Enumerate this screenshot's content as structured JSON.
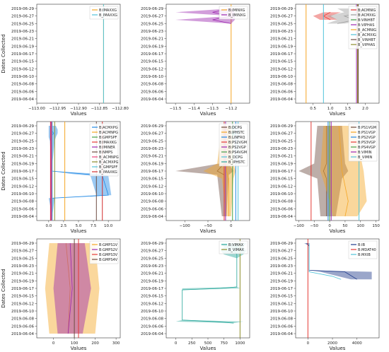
{
  "dates": [
    "2019-06-04",
    "2019-06-06",
    "2019-06-08",
    "2019-06-10",
    "2019-06-12",
    "2019-06-15",
    "2019-06-17",
    "2019-06-19",
    "2019-06-21",
    "2019-06-23",
    "2019-06-25",
    "2019-06-27",
    "2019-06-29"
  ],
  "ylabel": "Dates Collected",
  "xlabel": "Values",
  "chart_data": [
    {
      "type": "line",
      "xlim": [
        -113.0,
        -112.8
      ],
      "xticks": [
        -113.0,
        -112.95,
        -112.9,
        -112.85,
        -112.8
      ],
      "xtick_labels": [
        "−113.00",
        "−112.95",
        "−112.90",
        "−112.85",
        "−112.80"
      ],
      "xlabel": "Values",
      "ylabel": "Dates Collected",
      "legend": "top-right",
      "series": [
        {
          "name": "B:IMAXXG",
          "color": "#f5a623",
          "kind": "vline",
          "x": -112.84
        },
        {
          "name": "B_IMAXXG",
          "color": "#4fc3d9",
          "kind": "vline",
          "x": -112.84
        }
      ]
    },
    {
      "type": "line",
      "xlim": [
        -11.55,
        -11.1
      ],
      "xticks": [
        -11.5,
        -11.4,
        -11.3,
        -11.2
      ],
      "xtick_labels": [
        "−11.5",
        "−11.4",
        "−11.3",
        "−11.2"
      ],
      "xlabel": "Values",
      "ylabel": "",
      "legend": "top-right",
      "series": [
        {
          "name": "B:IMINXG",
          "color": "#f5a623",
          "kind": "vline",
          "x": -11.2
        },
        {
          "name": "B_IMINXG",
          "color": "#9c27b0",
          "kind": "band",
          "points": [
            [
              12,
              -11.2,
              -11.2,
              -11.2
            ],
            [
              11.5,
              -11.3,
              -11.5,
              -11.18
            ],
            [
              11,
              -11.2,
              -11.2,
              -11.18
            ],
            [
              10.5,
              -11.3,
              -11.5,
              -11.18
            ],
            [
              10,
              -11.2,
              -11.2,
              -11.2
            ]
          ]
        }
      ]
    },
    {
      "type": "line",
      "xlim": [
        0.0,
        2.4
      ],
      "xticks": [
        0.5,
        1.0,
        1.5,
        2.0
      ],
      "xtick_labels": [
        "0.5",
        "1.0",
        "1.5",
        "2.0"
      ],
      "xlabel": "Values",
      "ylabel": "",
      "legend": "top-right",
      "series": [
        {
          "name": "B:ACMNIG",
          "color": "#e53935",
          "kind": "band",
          "points": [
            [
              11.5,
              1.0,
              0.8,
              1.3
            ],
            [
              11,
              0.8,
              0.5,
              1.0
            ],
            [
              10.5,
              1.0,
              0.7,
              1.2
            ]
          ]
        },
        {
          "name": "B:ACMXIG",
          "color": "#9e9e9e",
          "kind": "band",
          "points": [
            [
              12,
              1.6,
              1.2,
              2.0
            ],
            [
              11.5,
              1.9,
              1.4,
              2.2
            ],
            [
              11,
              1.4,
              0.9,
              1.8
            ],
            [
              10.5,
              1.7,
              1.2,
              2.1
            ],
            [
              10,
              1.2,
              0.9,
              1.4
            ]
          ]
        },
        {
          "name": "B:VINHBT",
          "color": "#43a047",
          "kind": "vline",
          "x": 1.8
        },
        {
          "name": "B:VIPHAS",
          "color": "#9c27b0",
          "kind": "vline",
          "x": 1.75
        },
        {
          "name": "B_ACMNIG",
          "color": "#f5a623",
          "kind": "vline",
          "x": 0.3
        },
        {
          "name": "B_ACMXIG",
          "color": "#4fc3d9",
          "kind": "vline",
          "x": 0.8
        },
        {
          "name": "B_VINHBT",
          "color": "#6d4c41",
          "kind": "vline",
          "x": 1.8
        },
        {
          "name": "B_VIPHAS",
          "color": "#8d8d2a",
          "kind": "vline",
          "x": 1.78
        }
      ]
    },
    {
      "type": "line",
      "xlim": [
        -2,
        12
      ],
      "xticks": [
        0.0,
        2.5,
        5.0,
        7.5,
        10.0
      ],
      "xtick_labels": [
        "0.0",
        "2.5",
        "5.0",
        "7.5",
        "10.0"
      ],
      "xlabel": "Values",
      "ylabel": "Dates Collected",
      "legend": "top-right",
      "series": [
        {
          "name": "B:ACMXPG",
          "color": "#1e88e5",
          "kind": "band",
          "points": [
            [
              12,
              0.6,
              0.0,
              1.2
            ],
            [
              11.5,
              0.5,
              0.0,
              1.5
            ],
            [
              11,
              0.8,
              0.0,
              1.5
            ],
            [
              10.5,
              0.4,
              0.0,
              1.2
            ],
            [
              10,
              0.5,
              0.2,
              1.0
            ],
            [
              6,
              0.5,
              0.5,
              0.5
            ],
            [
              5.6,
              6.0,
              4.0,
              9.0
            ],
            [
              5.4,
              9.0,
              7.0,
              10.0
            ],
            [
              2.8,
              10.0,
              8.0,
              10.5
            ],
            [
              2.4,
              0.6,
              0.0,
              1.0
            ],
            [
              0,
              0.6,
              0.6,
              0.6
            ]
          ]
        },
        {
          "name": "B:ACMNPG",
          "color": "#f5a623",
          "kind": "vline",
          "x": 2.7
        },
        {
          "name": "B:GMPSPF",
          "color": "#43a047",
          "kind": "vline",
          "x": 0.5
        },
        {
          "name": "B:IMAXKG",
          "color": "#e53935",
          "kind": "vline",
          "x": 0.3
        },
        {
          "name": "B:IMINER",
          "color": "#9c27b0",
          "kind": "vline",
          "x": 0.4
        },
        {
          "name": "B:NMPS",
          "color": "#6d4c41",
          "kind": "vline",
          "x": 8.0
        },
        {
          "name": "B_ACMNPG",
          "color": "#ec407a",
          "kind": "vline",
          "x": 0.5
        },
        {
          "name": "B_ACMXPG",
          "color": "#8d8d2a",
          "kind": "vline",
          "x": 1.0
        },
        {
          "name": "B_GMPSPF",
          "color": "#4fc3d9",
          "kind": "vline",
          "x": 0.6
        },
        {
          "name": "B_IMAXKG",
          "color": "#d32f2f",
          "kind": "vline",
          "x": 9.0
        }
      ]
    },
    {
      "type": "line",
      "xlim": [
        -140,
        40
      ],
      "xticks": [
        -100,
        -50,
        0
      ],
      "xtick_labels": [
        "−100",
        "−50",
        "0"
      ],
      "xlabel": "Values",
      "ylabel": "",
      "legend": "top-right",
      "series": [
        {
          "name": "B:DCPG",
          "color": "#6d4c41",
          "kind": "band",
          "points": [
            [
              12,
              -15,
              -20,
              -5
            ],
            [
              7,
              -15,
              -25,
              -5
            ],
            [
              6,
              -30,
              -120,
              5
            ],
            [
              5.5,
              -15,
              -30,
              -5
            ],
            [
              0,
              -15,
              -20,
              -10
            ]
          ]
        },
        {
          "name": "B:IPHSTC",
          "color": "#f5a623",
          "kind": "band",
          "points": [
            [
              12,
              -5,
              -20,
              0
            ],
            [
              7,
              -10,
              -30,
              5
            ],
            [
              6,
              -10,
              -60,
              10
            ],
            [
              5,
              -5,
              -20,
              5
            ],
            [
              0,
              -5,
              -10,
              0
            ]
          ]
        },
        {
          "name": "B:LINFRQ",
          "color": "#1e88e5",
          "kind": "vline",
          "x": 10
        },
        {
          "name": "B:PS2VGM",
          "color": "#e53935",
          "kind": "vline",
          "x": -15
        },
        {
          "name": "B:PS2VGP",
          "color": "#9c27b0",
          "kind": "vline",
          "x": -12
        },
        {
          "name": "B:PS4VGM",
          "color": "#43a047",
          "kind": "vline",
          "x": 3
        },
        {
          "name": "B_DCPG",
          "color": "#4fc3d9",
          "kind": "vline",
          "x": 15
        },
        {
          "name": "B_IPHSTC",
          "color": "#26a69a",
          "kind": "marker",
          "points": [
            [
              11.8,
              5
            ],
            [
              11,
              5
            ]
          ]
        }
      ]
    },
    {
      "type": "line",
      "xlim": [
        -110,
        160
      ],
      "xticks": [
        -100,
        -50,
        0,
        50,
        100,
        150
      ],
      "xtick_labels": [
        "−100",
        "−50",
        "0",
        "50",
        "100",
        "150"
      ],
      "xlabel": "Values",
      "ylabel": "",
      "legend": "top-right",
      "series": [
        {
          "name": "B:PS1VGM",
          "color": "#6d4c41",
          "kind": "band",
          "points": [
            [
              12,
              -10,
              -40,
              40
            ],
            [
              7,
              -10,
              -50,
              50
            ],
            [
              6,
              -20,
              -100,
              60
            ],
            [
              5,
              -10,
              -40,
              40
            ],
            [
              0,
              -10,
              -30,
              20
            ]
          ]
        },
        {
          "name": "B:PS1VGP",
          "color": "#f5a623",
          "kind": "band",
          "points": [
            [
              12,
              30,
              -20,
              80
            ],
            [
              6,
              40,
              -30,
              110
            ],
            [
              2,
              60,
              0,
              120
            ],
            [
              0,
              50,
              10,
              90
            ]
          ]
        },
        {
          "name": "B:PS2VGP",
          "color": "#1e88e5",
          "kind": "vline",
          "x": -5
        },
        {
          "name": "B:PS3VGP",
          "color": "#e53935",
          "kind": "vline",
          "x": -60
        },
        {
          "name": "B:PS4VGP",
          "color": "#43a047",
          "kind": "vline",
          "x": 0
        },
        {
          "name": "B:VIMIN",
          "color": "#9c27b0",
          "kind": "vline",
          "x": 5
        },
        {
          "name": "B_VIMIN",
          "color": "#4fc3d9",
          "kind": "vline",
          "x": 95
        }
      ]
    },
    {
      "type": "line",
      "xlim": [
        -80,
        320
      ],
      "xticks": [
        0,
        100,
        200,
        300
      ],
      "xtick_labels": [
        "0",
        "100",
        "200",
        "300"
      ],
      "xlabel": "Values",
      "ylabel": "Dates Collected",
      "legend": "top-right",
      "series": [
        {
          "name": "B:GMPS1V",
          "color": "#f5a623",
          "kind": "band",
          "points": [
            [
              12,
              60,
              -20,
              200
            ],
            [
              6,
              80,
              -40,
              220
            ],
            [
              0,
              70,
              -20,
              200
            ]
          ]
        },
        {
          "name": "B:GMPS2V",
          "color": "#9c27b0",
          "kind": "band",
          "points": [
            [
              12,
              80,
              20,
              150
            ],
            [
              6,
              90,
              0,
              180
            ],
            [
              0,
              70,
              20,
              140
            ]
          ]
        },
        {
          "name": "B:GMPS3V",
          "color": "#e53935",
          "kind": "vline",
          "x": 120
        },
        {
          "name": "B:GMPS4V",
          "color": "#6d4c41",
          "kind": "vline",
          "x": 100
        }
      ]
    },
    {
      "type": "line",
      "xlim": [
        -150,
        1150
      ],
      "xticks": [
        0,
        250,
        500,
        750,
        1000
      ],
      "xtick_labels": [
        "0",
        "250",
        "500",
        "750",
        "1000"
      ],
      "xlabel": "Values",
      "ylabel": "",
      "legend": "top-right",
      "series": [
        {
          "name": "B:VIMAX",
          "color": "#26a69a",
          "kind": "band",
          "points": [
            [
              12,
              950,
              700,
              1100
            ],
            [
              11.5,
              950,
              750,
              1050
            ],
            [
              11,
              900,
              700,
              1100
            ],
            [
              10.5,
              950,
              750,
              1050
            ],
            [
              10,
              950,
              950,
              950
            ],
            [
              6.2,
              950,
              950,
              950
            ],
            [
              6,
              700,
              100,
              1000
            ],
            [
              5.8,
              100,
              100,
              100
            ],
            [
              1.8,
              100,
              100,
              100
            ],
            [
              1.6,
              600,
              0,
              1050
            ],
            [
              1.4,
              900,
              900,
              900
            ]
          ]
        },
        {
          "name": "B_VIMAX",
          "color": "#8d8d2a",
          "kind": "vline",
          "x": 1000
        }
      ]
    },
    {
      "type": "line",
      "xlim": [
        -1000,
        5800
      ],
      "xticks": [
        0,
        2000,
        4000
      ],
      "xtick_labels": [
        "0",
        "2000",
        "4000"
      ],
      "xlabel": "Values",
      "ylabel": "",
      "legend": "top-right",
      "series": [
        {
          "name": "B:IB",
          "color": "#1e3a8a",
          "kind": "band",
          "points": [
            [
              12,
              -100,
              -300,
              100
            ],
            [
              11.6,
              100,
              100,
              100
            ],
            [
              8.4,
              100,
              100,
              100
            ],
            [
              8.2,
              3000,
              1000,
              5200
            ],
            [
              7.2,
              4000,
              3500,
              5200
            ]
          ]
        },
        {
          "name": "B:MDAT40",
          "color": "#e53935",
          "kind": "vline",
          "x": 0
        },
        {
          "name": "B:MXIB",
          "color": "#4fc3d9",
          "kind": "line",
          "points": [
            [
              12,
              100
            ],
            [
              8.2,
              100
            ],
            [
              7.6,
              2000
            ],
            [
              7.2,
              2700
            ]
          ]
        }
      ]
    }
  ]
}
